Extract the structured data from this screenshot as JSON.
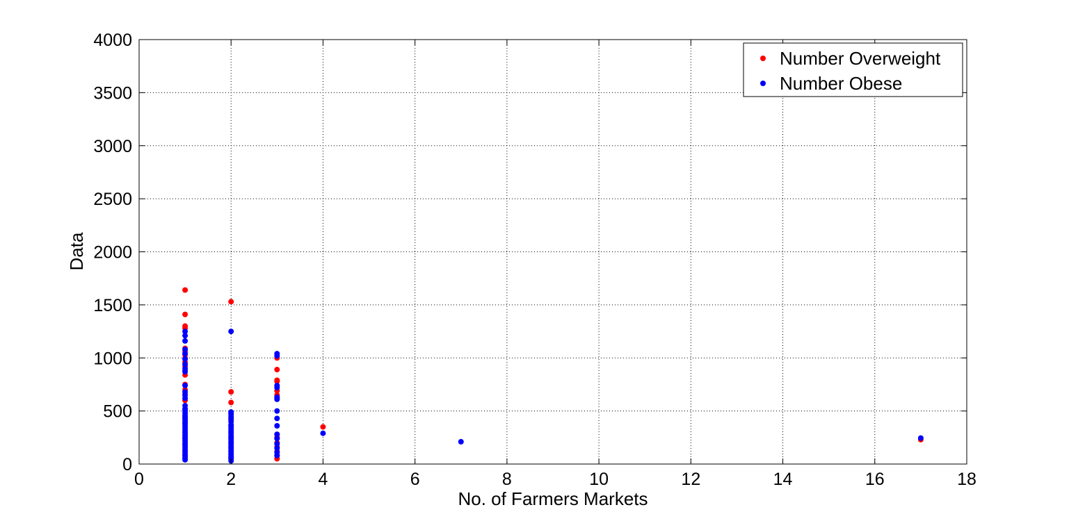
{
  "chart_data": {
    "type": "scatter",
    "xlabel": "No. of Farmers Markets",
    "ylabel": "Data",
    "xlim": [
      0,
      18
    ],
    "ylim": [
      0,
      4000
    ],
    "xticks": [
      "0",
      "2",
      "4",
      "6",
      "8",
      "10",
      "12",
      "14",
      "16",
      "18"
    ],
    "yticks": [
      "0",
      "500",
      "1000",
      "1500",
      "2000",
      "2500",
      "3000",
      "3500",
      "4000"
    ],
    "grid": true,
    "legend_position": "top-right",
    "series": [
      {
        "name": "Number Overweight",
        "color": "#ff0000",
        "points": [
          [
            1,
            1640
          ],
          [
            1,
            1410
          ],
          [
            1,
            1300
          ],
          [
            1,
            1280
          ],
          [
            1,
            1090
          ],
          [
            1,
            1060
          ],
          [
            1,
            1030
          ],
          [
            1,
            1000
          ],
          [
            1,
            960
          ],
          [
            1,
            920
          ],
          [
            1,
            880
          ],
          [
            1,
            840
          ],
          [
            1,
            750
          ],
          [
            1,
            700
          ],
          [
            1,
            660
          ],
          [
            1,
            600
          ],
          [
            1,
            520
          ],
          [
            1,
            440
          ],
          [
            1,
            380
          ],
          [
            1,
            300
          ],
          [
            1,
            240
          ],
          [
            1,
            180
          ],
          [
            1,
            120
          ],
          [
            1,
            80
          ],
          [
            2,
            1530
          ],
          [
            2,
            680
          ],
          [
            2,
            580
          ],
          [
            2,
            480
          ],
          [
            2,
            420
          ],
          [
            2,
            360
          ],
          [
            2,
            300
          ],
          [
            2,
            250
          ],
          [
            2,
            200
          ],
          [
            2,
            160
          ],
          [
            2,
            120
          ],
          [
            2,
            90
          ],
          [
            2,
            60
          ],
          [
            3,
            1000
          ],
          [
            3,
            890
          ],
          [
            3,
            790
          ],
          [
            3,
            780
          ],
          [
            3,
            690
          ],
          [
            3,
            650
          ],
          [
            3,
            620
          ],
          [
            3,
            280
          ],
          [
            3,
            250
          ],
          [
            3,
            200
          ],
          [
            3,
            160
          ],
          [
            3,
            120
          ],
          [
            3,
            80
          ],
          [
            3,
            50
          ],
          [
            4,
            350
          ],
          [
            17,
            230
          ]
        ]
      },
      {
        "name": "Number Obese",
        "color": "#0000ff",
        "points": [
          [
            1,
            1250
          ],
          [
            1,
            1210
          ],
          [
            1,
            1160
          ],
          [
            1,
            1080
          ],
          [
            1,
            1040
          ],
          [
            1,
            990
          ],
          [
            1,
            940
          ],
          [
            1,
            900
          ],
          [
            1,
            870
          ],
          [
            1,
            740
          ],
          [
            1,
            680
          ],
          [
            1,
            650
          ],
          [
            1,
            620
          ],
          [
            1,
            550
          ],
          [
            1,
            520
          ],
          [
            1,
            500
          ],
          [
            1,
            480
          ],
          [
            1,
            460
          ],
          [
            1,
            440
          ],
          [
            1,
            420
          ],
          [
            1,
            400
          ],
          [
            1,
            380
          ],
          [
            1,
            360
          ],
          [
            1,
            340
          ],
          [
            1,
            320
          ],
          [
            1,
            300
          ],
          [
            1,
            280
          ],
          [
            1,
            260
          ],
          [
            1,
            240
          ],
          [
            1,
            220
          ],
          [
            1,
            200
          ],
          [
            1,
            180
          ],
          [
            1,
            160
          ],
          [
            1,
            140
          ],
          [
            1,
            120
          ],
          [
            1,
            100
          ],
          [
            1,
            80
          ],
          [
            1,
            60
          ],
          [
            1,
            40
          ],
          [
            2,
            1250
          ],
          [
            2,
            490
          ],
          [
            2,
            470
          ],
          [
            2,
            450
          ],
          [
            2,
            430
          ],
          [
            2,
            400
          ],
          [
            2,
            370
          ],
          [
            2,
            350
          ],
          [
            2,
            330
          ],
          [
            2,
            310
          ],
          [
            2,
            290
          ],
          [
            2,
            270
          ],
          [
            2,
            250
          ],
          [
            2,
            230
          ],
          [
            2,
            210
          ],
          [
            2,
            190
          ],
          [
            2,
            170
          ],
          [
            2,
            150
          ],
          [
            2,
            130
          ],
          [
            2,
            110
          ],
          [
            2,
            90
          ],
          [
            2,
            70
          ],
          [
            2,
            50
          ],
          [
            2,
            30
          ],
          [
            3,
            1040
          ],
          [
            3,
            1020
          ],
          [
            3,
            740
          ],
          [
            3,
            720
          ],
          [
            3,
            630
          ],
          [
            3,
            610
          ],
          [
            3,
            500
          ],
          [
            3,
            430
          ],
          [
            3,
            360
          ],
          [
            3,
            280
          ],
          [
            3,
            240
          ],
          [
            3,
            190
          ],
          [
            3,
            150
          ],
          [
            3,
            110
          ],
          [
            3,
            80
          ],
          [
            4,
            290
          ],
          [
            7,
            210
          ],
          [
            17,
            245
          ]
        ]
      }
    ]
  }
}
